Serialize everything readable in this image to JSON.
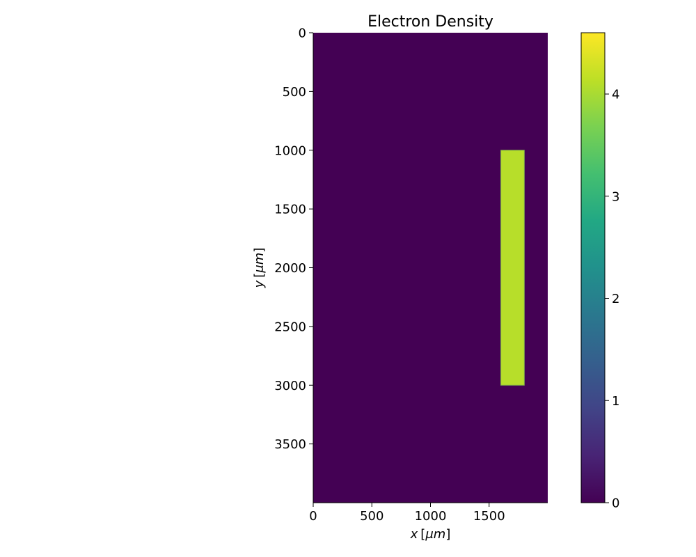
{
  "chart_data": {
    "type": "heatmap",
    "title": "Electron Density",
    "xlabel": {
      "var": "x",
      "unit": "μm"
    },
    "ylabel": {
      "var": "y",
      "unit": "μm"
    },
    "xlim": [
      0,
      2000
    ],
    "ylim": [
      4000,
      0
    ],
    "y_inverted": true,
    "xticks": [
      0,
      500,
      1000,
      1500
    ],
    "yticks": [
      0,
      500,
      1000,
      1500,
      2000,
      2500,
      3000,
      3500
    ],
    "background_value": 0,
    "regions": [
      {
        "x": [
          1600,
          1800
        ],
        "y": [
          1000,
          3000
        ],
        "value": 4.1
      }
    ],
    "colorbar": {
      "min": 0,
      "max": 4.6,
      "ticks": [
        0,
        1,
        2,
        3,
        4
      ],
      "colormap": "viridis"
    },
    "grid": false
  }
}
